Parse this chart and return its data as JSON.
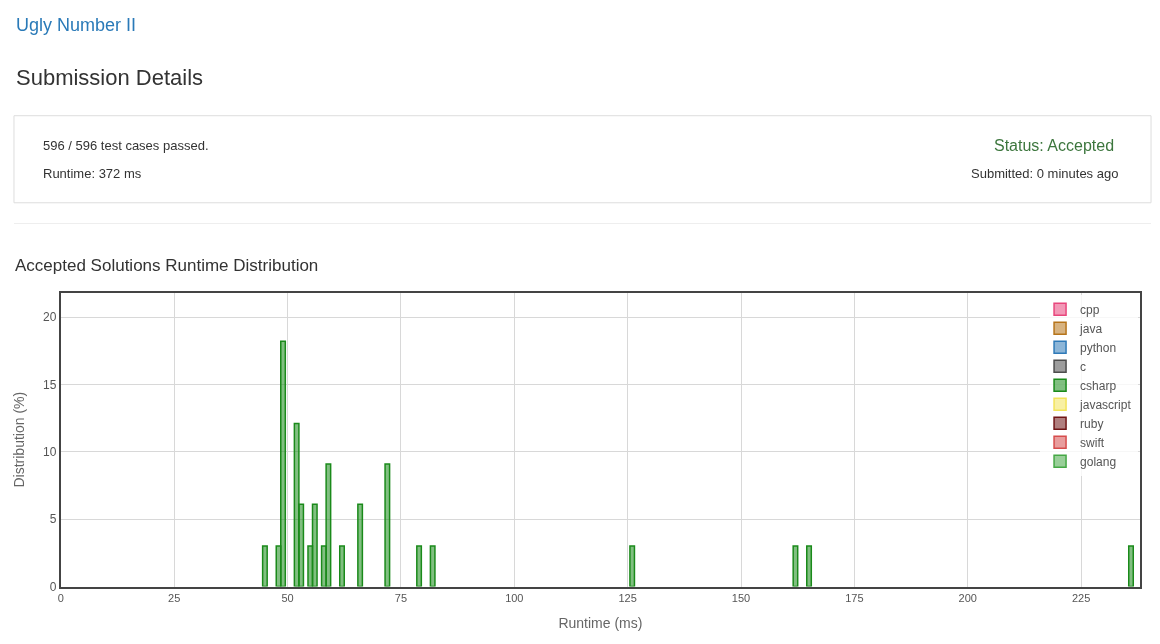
{
  "chart_data": {
    "type": "bar",
    "title": "Accepted Solutions Runtime Distribution",
    "annotations": [
      "Ugly Number II",
      "Submission Details",
      "596 / 596 test cases passed.",
      "Runtime: 372 ms",
      "Status: Accepted",
      "Submitted: 0 minutes ago"
    ],
    "xlabel": "Runtime (ms)",
    "ylabel": "Distribution (%)",
    "x": [
      45,
      48,
      49,
      52,
      53,
      55,
      56,
      58,
      59,
      62,
      66,
      72,
      79,
      82,
      126,
      162,
      165,
      236
    ],
    "series": [
      {
        "name": "cpp",
        "color": "#e8467c",
        "values": [
          null,
          null,
          null,
          null,
          null,
          null,
          null,
          null,
          null,
          null,
          null,
          null,
          null,
          null,
          null,
          null,
          null,
          null
        ]
      },
      {
        "name": "java",
        "color": "#b6741a",
        "values": [
          null,
          null,
          null,
          null,
          null,
          null,
          null,
          null,
          null,
          null,
          null,
          null,
          null,
          null,
          null,
          null,
          null,
          null
        ]
      },
      {
        "name": "python",
        "color": "#2f7ab8",
        "values": [
          null,
          null,
          null,
          null,
          null,
          null,
          null,
          null,
          null,
          null,
          null,
          null,
          null,
          null,
          null,
          null,
          null,
          null
        ]
      },
      {
        "name": "c",
        "color": "#4d4d4d",
        "values": [
          null,
          null,
          null,
          null,
          null,
          null,
          null,
          null,
          null,
          null,
          null,
          null,
          null,
          null,
          null,
          null,
          null,
          null
        ]
      },
      {
        "name": "csharp",
        "color": "#1a8a1a",
        "values": [
          3.0,
          3.0,
          18.2,
          12.1,
          6.1,
          3.0,
          6.1,
          3.0,
          9.1,
          3.0,
          6.1,
          9.1,
          3.0,
          3.0,
          3.0,
          3.0,
          3.0,
          3.0
        ]
      },
      {
        "name": "javascript",
        "color": "#f2e35a",
        "values": [
          null,
          null,
          null,
          null,
          null,
          null,
          null,
          null,
          null,
          null,
          null,
          null,
          null,
          null,
          null,
          null,
          null,
          null
        ]
      },
      {
        "name": "ruby",
        "color": "#701516",
        "values": [
          null,
          null,
          null,
          null,
          null,
          null,
          null,
          null,
          null,
          null,
          null,
          null,
          null,
          null,
          null,
          null,
          null,
          null
        ]
      },
      {
        "name": "swift",
        "color": "#d64c4c",
        "values": [
          null,
          null,
          null,
          null,
          null,
          null,
          null,
          null,
          null,
          null,
          null,
          null,
          null,
          null,
          null,
          null,
          null,
          null
        ]
      },
      {
        "name": "golang",
        "color": "#45a845",
        "values": [
          null,
          null,
          null,
          null,
          null,
          null,
          null,
          null,
          null,
          null,
          null,
          null,
          null,
          null,
          null,
          null,
          null,
          null
        ]
      }
    ],
    "xlim": [
      0,
      238
    ],
    "xticks": [
      0,
      25,
      50,
      75,
      100,
      125,
      150,
      175,
      200,
      225
    ],
    "ylim": [
      0,
      21.8
    ],
    "yticks": [
      0,
      5,
      10,
      15,
      20
    ],
    "grid": true,
    "legend": "top right"
  }
}
